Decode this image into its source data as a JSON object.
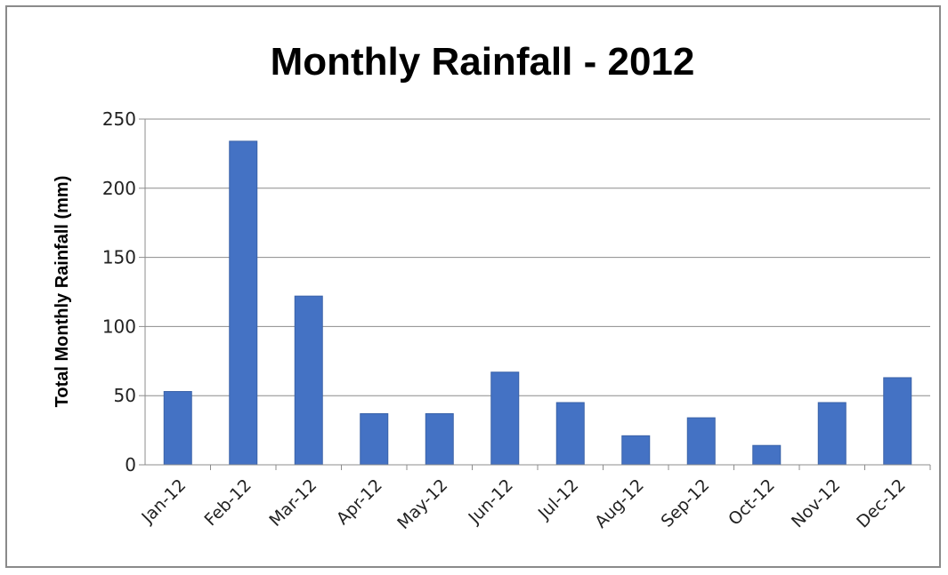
{
  "chart_data": {
    "type": "bar",
    "title": "Monthly Rainfall - 2012",
    "xlabel": "",
    "ylabel": "Total Monthly Rainfall (mm)",
    "categories": [
      "Jan-12",
      "Feb-12",
      "Mar-12",
      "Apr-12",
      "May-12",
      "Jun-12",
      "Jul-12",
      "Aug-12",
      "Sep-12",
      "Oct-12",
      "Nov-12",
      "Dec-12"
    ],
    "values": [
      53,
      234,
      122,
      37,
      37,
      67,
      45,
      21,
      34,
      14,
      45,
      63
    ],
    "ylim": [
      0,
      250
    ],
    "yticks": [
      0,
      50,
      100,
      150,
      200,
      250
    ],
    "grid": true,
    "legend": "none",
    "bar_color": "#4472C4"
  }
}
